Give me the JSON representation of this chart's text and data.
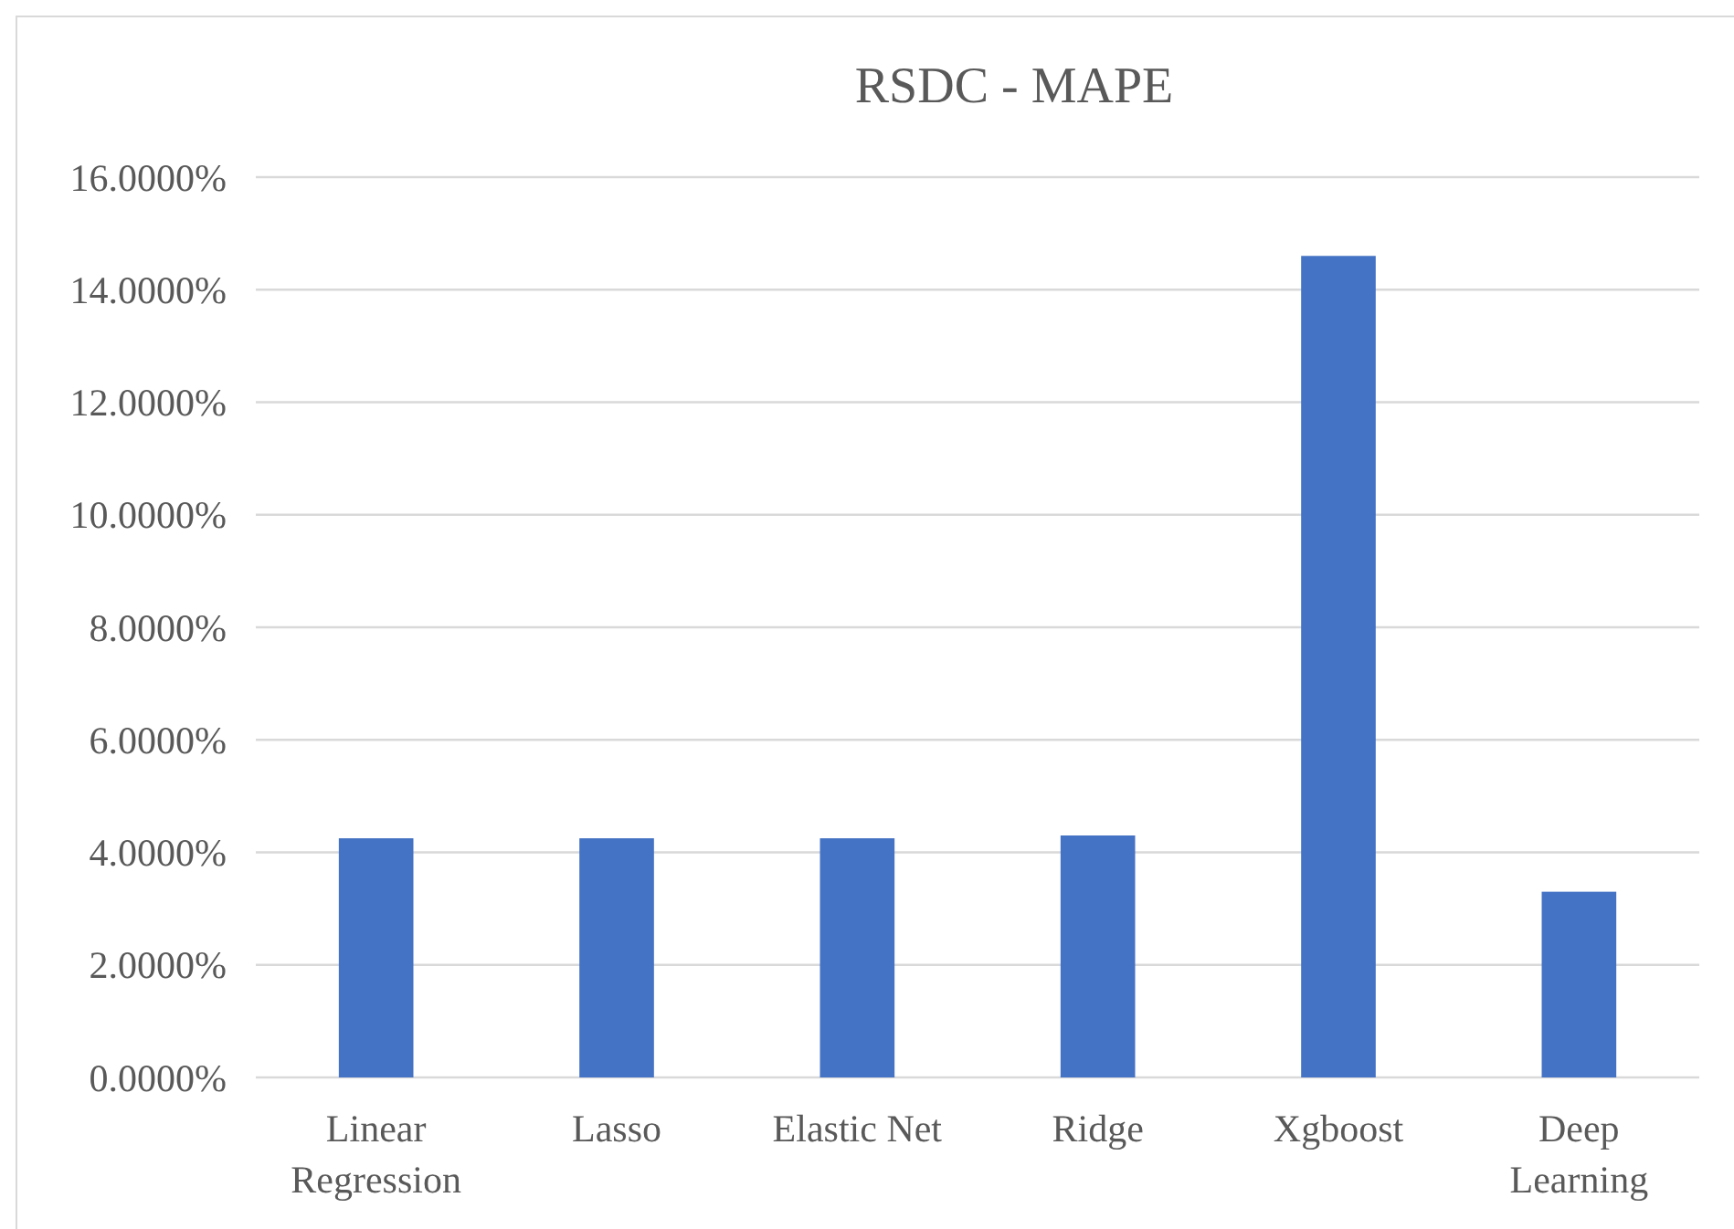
{
  "chart_data": {
    "type": "bar",
    "title": "RSDC - MAPE",
    "categories": [
      [
        "Linear",
        "Regression"
      ],
      [
        "Lasso"
      ],
      [
        "Elastic Net"
      ],
      [
        "Ridge"
      ],
      [
        "Xgboost"
      ],
      [
        "Deep",
        "Learning"
      ]
    ],
    "values": [
      4.25,
      4.25,
      4.25,
      4.3,
      14.6,
      3.3
    ],
    "color": "#4472c4",
    "ylim": [
      0,
      16
    ],
    "yticks": [
      {
        "value": 0,
        "label": "0.0000%"
      },
      {
        "value": 2,
        "label": "2.0000%"
      },
      {
        "value": 4,
        "label": "4.0000%"
      },
      {
        "value": 6,
        "label": "6.0000%"
      },
      {
        "value": 8,
        "label": "8.0000%"
      },
      {
        "value": 10,
        "label": "10.0000%"
      },
      {
        "value": 12,
        "label": "12.0000%"
      },
      {
        "value": 14,
        "label": "14.0000%"
      },
      {
        "value": 16,
        "label": "16.0000%"
      }
    ],
    "grid": "y"
  }
}
